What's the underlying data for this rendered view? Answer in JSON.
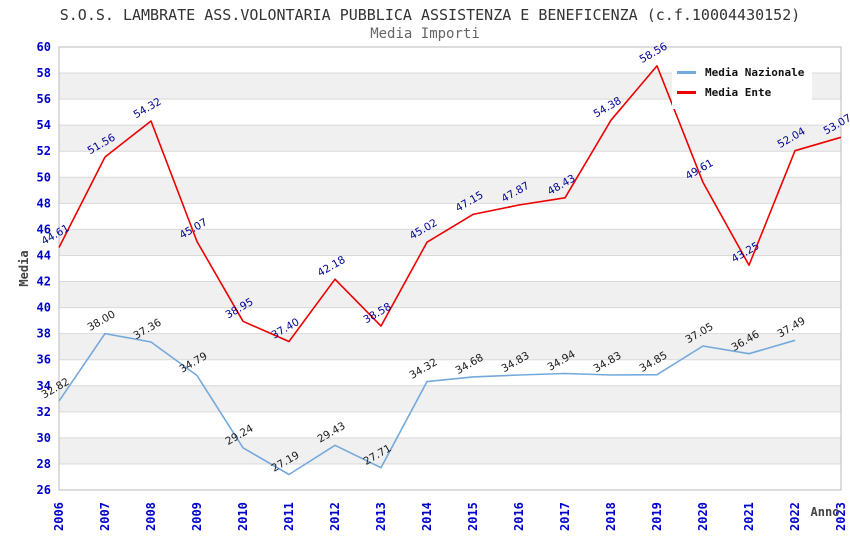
{
  "title": "S.O.S. LAMBRATE ASS.VOLONTARIA PUBBLICA ASSISTENZA E BENEFICENZA (c.f.10004430152)",
  "subtitle": "Media Importi",
  "chart_data": {
    "type": "line",
    "x": [
      "2006",
      "2007",
      "2008",
      "2009",
      "2010",
      "2011",
      "2012",
      "2013",
      "2014",
      "2015",
      "2016",
      "2017",
      "2018",
      "2019",
      "2020",
      "2021",
      "2022",
      "2023"
    ],
    "xlabel": "Anno",
    "ylabel": "Media",
    "ylim": [
      26,
      60
    ],
    "ytick_step": 2,
    "grid": true,
    "banded_background": true,
    "legend_position": "top-right",
    "series": [
      {
        "name": "Media Nazionale",
        "color": "#74A9DC",
        "label_color": "#1a1a1a",
        "values": [
          32.82,
          38.0,
          37.36,
          34.79,
          29.24,
          27.19,
          29.43,
          27.71,
          34.32,
          34.68,
          34.83,
          34.94,
          34.83,
          34.85,
          37.05,
          36.46,
          37.49,
          null
        ]
      },
      {
        "name": "Media Ente",
        "color": "#EE0000",
        "label_color": "#000099",
        "values": [
          44.61,
          51.56,
          54.32,
          45.07,
          38.95,
          37.4,
          42.18,
          38.58,
          45.02,
          47.15,
          47.87,
          48.43,
          54.38,
          58.56,
          49.61,
          43.25,
          52.04,
          53.07
        ]
      }
    ]
  },
  "style": {
    "tick_color": "#0000CC",
    "band_color": "#F0F0F0",
    "grid_color": "#D9D9D9",
    "border_color": "#BBBBBB",
    "axis_label_color": "#444444",
    "title_color": "#333333",
    "subtitle_color": "#666666",
    "legend_text_color": "#111111"
  }
}
